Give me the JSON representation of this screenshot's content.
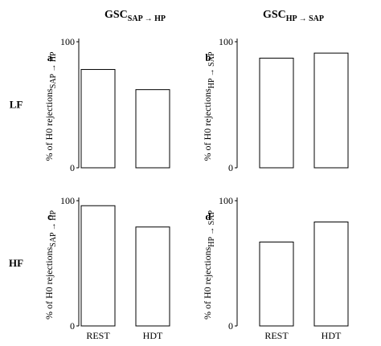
{
  "chart_data": [
    {
      "type": "bar",
      "panel": "a",
      "title": {
        "main": "GSC",
        "sub": "SAP → HP"
      },
      "row_label": "LF",
      "ylabel": {
        "main": "% of H0 rejections",
        "sub": "SAP → HP"
      },
      "categories": [
        null,
        null
      ],
      "values": [
        78,
        62
      ],
      "color": "#ffffff",
      "ylim": [
        0,
        100
      ],
      "yticks": [
        0,
        100
      ]
    },
    {
      "type": "bar",
      "panel": "b",
      "title": {
        "main": "GSC",
        "sub": "HP → SAP"
      },
      "ylabel": {
        "main": "% of H0 rejections",
        "sub": "HP → SAP"
      },
      "categories": [
        null,
        null
      ],
      "values": [
        87,
        91
      ],
      "color": "#ffffff",
      "ylim": [
        0,
        100
      ],
      "yticks": [
        0,
        100
      ]
    },
    {
      "type": "bar",
      "panel": "c",
      "row_label": "HF",
      "ylabel": {
        "main": "% of H0 rejections",
        "sub": "SAP → HP"
      },
      "categories": [
        "REST",
        "HDT"
      ],
      "values": [
        96,
        79
      ],
      "color": "#ffffff",
      "ylim": [
        0,
        100
      ],
      "yticks": [
        0,
        100
      ]
    },
    {
      "type": "bar",
      "panel": "d",
      "ylabel": {
        "main": "% of H0 rejections",
        "sub": "HP → SAP"
      },
      "categories": [
        "REST",
        "HDT"
      ],
      "values": [
        67,
        83
      ],
      "color": "#ffffff",
      "ylim": [
        0,
        100
      ],
      "yticks": [
        0,
        100
      ]
    }
  ]
}
